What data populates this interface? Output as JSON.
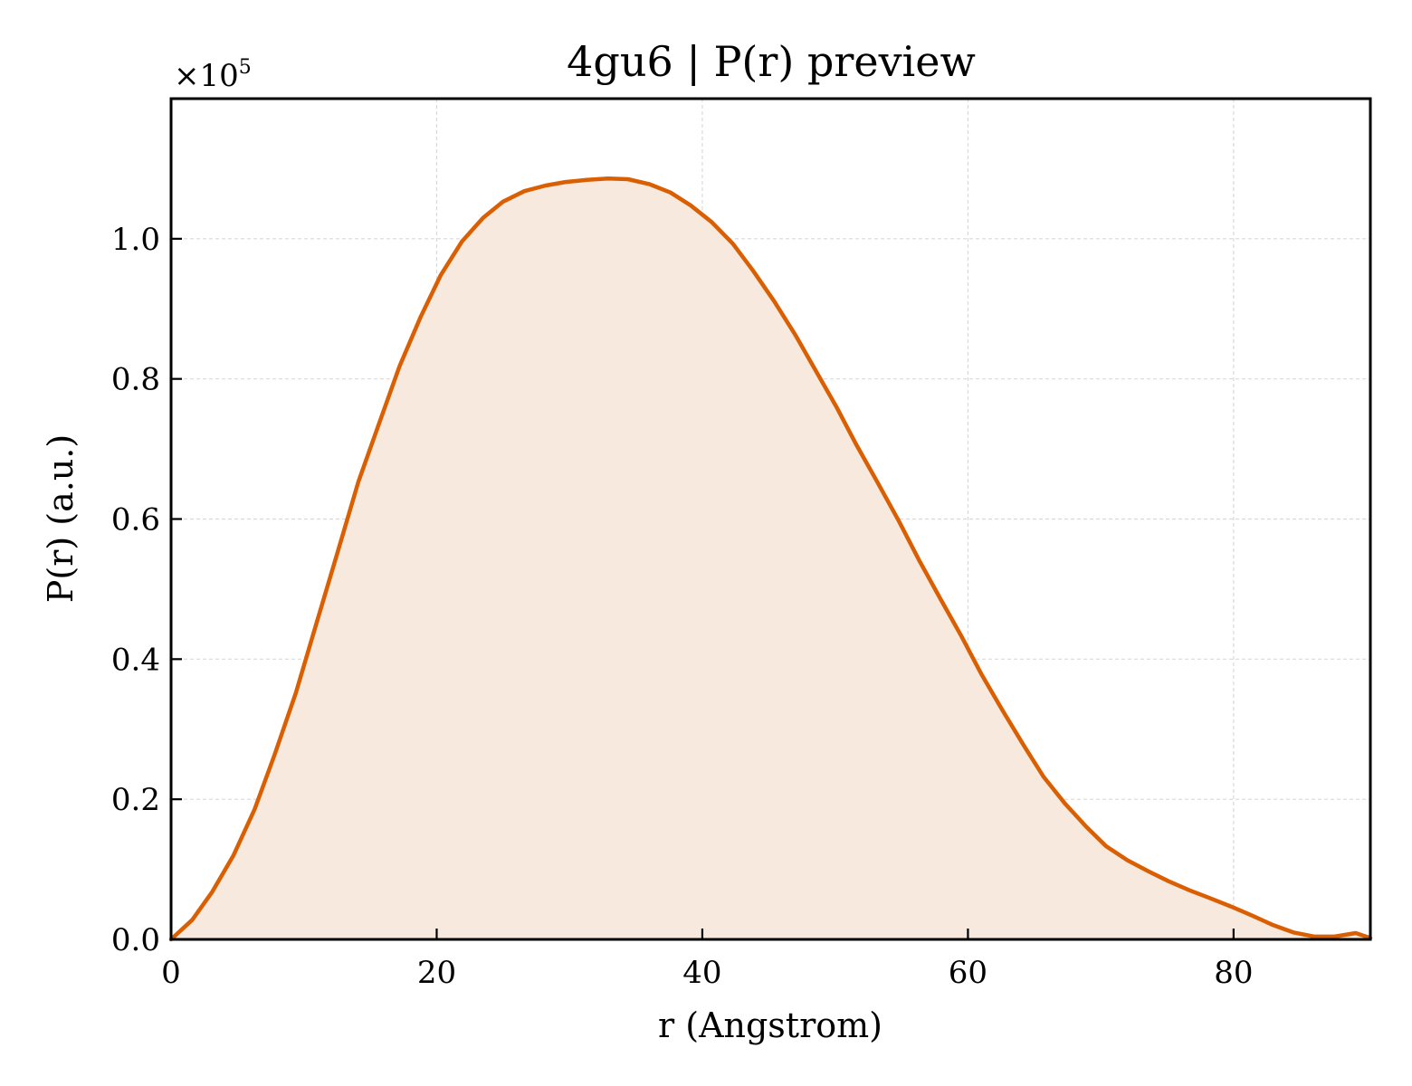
{
  "chart_data": {
    "type": "area",
    "title": "4gu6 | P(r) preview",
    "xlabel": "r (Angstrom)",
    "ylabel": "P(r) (a.u.)",
    "offset_label": "×10",
    "offset_exponent": "5",
    "xlim": [
      0,
      90.3
    ],
    "ylim": [
      0,
      1.2
    ],
    "xticks": [
      0,
      20,
      40,
      60,
      80
    ],
    "xtick_labels": [
      "0",
      "20",
      "40",
      "60",
      "80"
    ],
    "yticks": [
      0.0,
      0.2,
      0.4,
      0.6,
      0.8,
      1.0
    ],
    "ytick_labels": [
      "0.0",
      "0.2",
      "0.4",
      "0.6",
      "0.8",
      "1.0"
    ],
    "grid": true,
    "line_color": "#d95f02",
    "fill_color": "#f8e9df",
    "series": [
      {
        "x": [
          0.0,
          1.6,
          3.1,
          4.7,
          6.3,
          7.8,
          9.4,
          10.9,
          12.5,
          14.1,
          15.6,
          17.2,
          18.8,
          20.3,
          21.9,
          23.5,
          25.0,
          26.6,
          28.2,
          29.7,
          31.3,
          32.9,
          34.4,
          36.0,
          37.6,
          39.1,
          40.7,
          42.3,
          43.8,
          45.4,
          47.0,
          48.5,
          50.1,
          51.6,
          53.2,
          54.8,
          56.3,
          57.9,
          59.5,
          61.0,
          62.6,
          64.2,
          65.7,
          67.3,
          68.9,
          70.4,
          72.0,
          73.6,
          75.1,
          76.7,
          78.2,
          79.8,
          81.4,
          82.9,
          84.5,
          86.1,
          87.6,
          89.2,
          90.3
        ],
        "y": [
          0.0,
          0.028,
          0.068,
          0.12,
          0.186,
          0.264,
          0.352,
          0.448,
          0.55,
          0.653,
          0.733,
          0.818,
          0.889,
          0.948,
          0.996,
          1.03,
          1.053,
          1.068,
          1.076,
          1.081,
          1.084,
          1.086,
          1.085,
          1.078,
          1.066,
          1.048,
          1.024,
          0.993,
          0.955,
          0.911,
          0.863,
          0.813,
          0.76,
          0.706,
          0.652,
          0.597,
          0.542,
          0.487,
          0.433,
          0.379,
          0.327,
          0.277,
          0.232,
          0.194,
          0.161,
          0.133,
          0.113,
          0.097,
          0.083,
          0.07,
          0.059,
          0.047,
          0.034,
          0.021,
          0.01,
          0.004,
          0.004,
          0.009,
          0.002
        ]
      }
    ]
  }
}
